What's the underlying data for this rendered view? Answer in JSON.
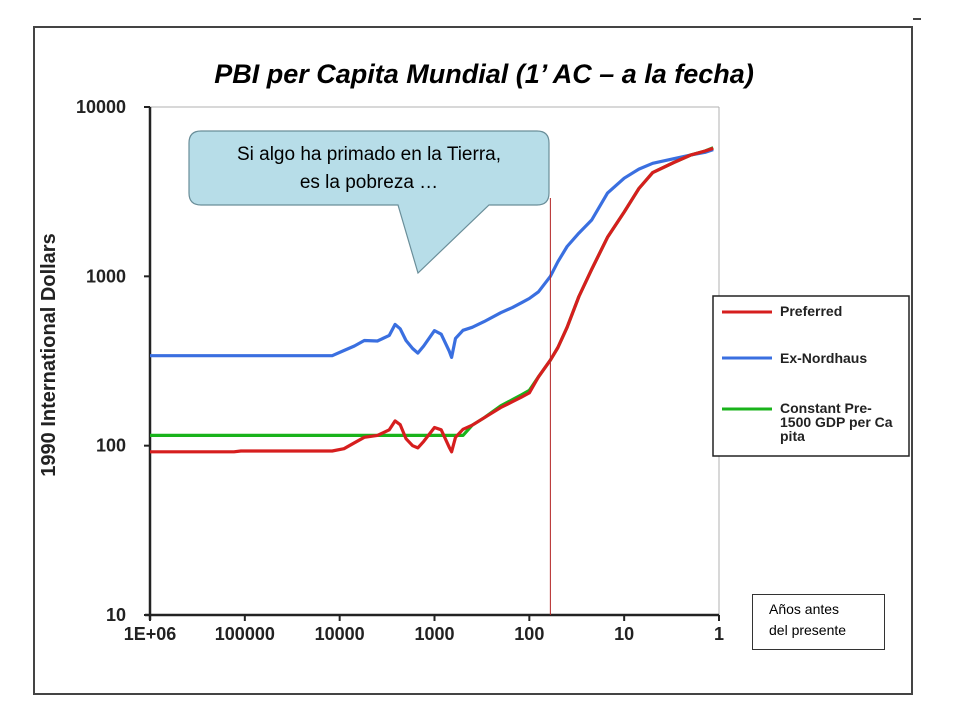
{
  "chart_data": {
    "type": "line",
    "title": "PBI per Capita Mundial (1’ AC – a la fecha)",
    "ylabel": "1990 International Dollars",
    "xlabel": "",
    "y_scale": "log",
    "x_scale": "log",
    "x_reversed": true,
    "xlim": [
      1000000,
      1
    ],
    "ylim": [
      10,
      10000
    ],
    "x_tick_labels": [
      "1E+06",
      "100000",
      "10000",
      "1000",
      "100",
      "10",
      "1"
    ],
    "y_tick_labels": [
      "10000",
      "1000",
      "100",
      "10"
    ],
    "grid": false,
    "legend_position": "right",
    "annotation_line_x": 60,
    "series": [
      {
        "name": "Preferred",
        "color": "#d61e1e",
        "points": [
          [
            1000000,
            92
          ],
          [
            130000,
            92
          ],
          [
            110000,
            93
          ],
          [
            12000,
            93
          ],
          [
            9000,
            96
          ],
          [
            7000,
            104
          ],
          [
            5500,
            112
          ],
          [
            4000,
            115
          ],
          [
            3000,
            124
          ],
          [
            2600,
            140
          ],
          [
            2300,
            133
          ],
          [
            2000,
            110
          ],
          [
            1700,
            100
          ],
          [
            1500,
            97
          ],
          [
            1300,
            106
          ],
          [
            1000,
            128
          ],
          [
            850,
            124
          ],
          [
            700,
            98
          ],
          [
            660,
            92
          ],
          [
            600,
            112
          ],
          [
            500,
            125
          ],
          [
            400,
            132
          ],
          [
            300,
            146
          ],
          [
            200,
            168
          ],
          [
            150,
            182
          ],
          [
            120,
            194
          ],
          [
            100,
            205
          ],
          [
            80,
            255
          ],
          [
            60,
            320
          ],
          [
            50,
            380
          ],
          [
            40,
            500
          ],
          [
            30,
            760
          ],
          [
            22,
            1100
          ],
          [
            15,
            1700
          ],
          [
            10,
            2400
          ],
          [
            7,
            3300
          ],
          [
            5,
            4100
          ],
          [
            3,
            4700
          ],
          [
            2,
            5200
          ],
          [
            1.4,
            5500
          ],
          [
            1.15,
            5700
          ]
        ]
      },
      {
        "name": "Ex-Nordhaus",
        "color": "#3a6fe0",
        "points": [
          [
            1000000,
            340
          ],
          [
            12000,
            340
          ],
          [
            9000,
            365
          ],
          [
            7000,
            388
          ],
          [
            5500,
            418
          ],
          [
            4000,
            415
          ],
          [
            3000,
            448
          ],
          [
            2600,
            520
          ],
          [
            2300,
            490
          ],
          [
            2000,
            418
          ],
          [
            1700,
            375
          ],
          [
            1500,
            352
          ],
          [
            1300,
            388
          ],
          [
            1000,
            478
          ],
          [
            850,
            455
          ],
          [
            700,
            362
          ],
          [
            660,
            332
          ],
          [
            600,
            430
          ],
          [
            500,
            480
          ],
          [
            400,
            500
          ],
          [
            300,
            540
          ],
          [
            200,
            610
          ],
          [
            150,
            655
          ],
          [
            120,
            700
          ],
          [
            100,
            740
          ],
          [
            80,
            810
          ],
          [
            60,
            1000
          ],
          [
            50,
            1220
          ],
          [
            40,
            1500
          ],
          [
            30,
            1800
          ],
          [
            22,
            2150
          ],
          [
            15,
            3100
          ],
          [
            10,
            3800
          ],
          [
            7,
            4300
          ],
          [
            5,
            4650
          ],
          [
            3,
            4950
          ],
          [
            2,
            5200
          ],
          [
            1.4,
            5400
          ],
          [
            1.15,
            5600
          ]
        ]
      },
      {
        "name": "Constant Pre-1500 GDP per Capita",
        "color": "#19b31b",
        "points": [
          [
            1000000,
            115
          ],
          [
            500,
            115
          ],
          [
            400,
            132
          ],
          [
            300,
            146
          ],
          [
            200,
            172
          ],
          [
            150,
            187
          ],
          [
            120,
            200
          ],
          [
            100,
            212
          ],
          [
            80,
            255
          ],
          [
            60,
            320
          ],
          [
            50,
            380
          ],
          [
            40,
            500
          ],
          [
            30,
            760
          ],
          [
            22,
            1100
          ],
          [
            15,
            1700
          ],
          [
            10,
            2400
          ],
          [
            7,
            3300
          ],
          [
            5,
            4100
          ],
          [
            3,
            4700
          ],
          [
            2,
            5200
          ],
          [
            1.4,
            5500
          ],
          [
            1.15,
            5750
          ]
        ]
      }
    ],
    "callout": {
      "line1": "Si algo ha primado en la Tierra,",
      "line2": "es la pobreza …",
      "fill": "#b7dde8"
    },
    "note": {
      "line1": "Años antes",
      "line2": "del presente"
    }
  }
}
